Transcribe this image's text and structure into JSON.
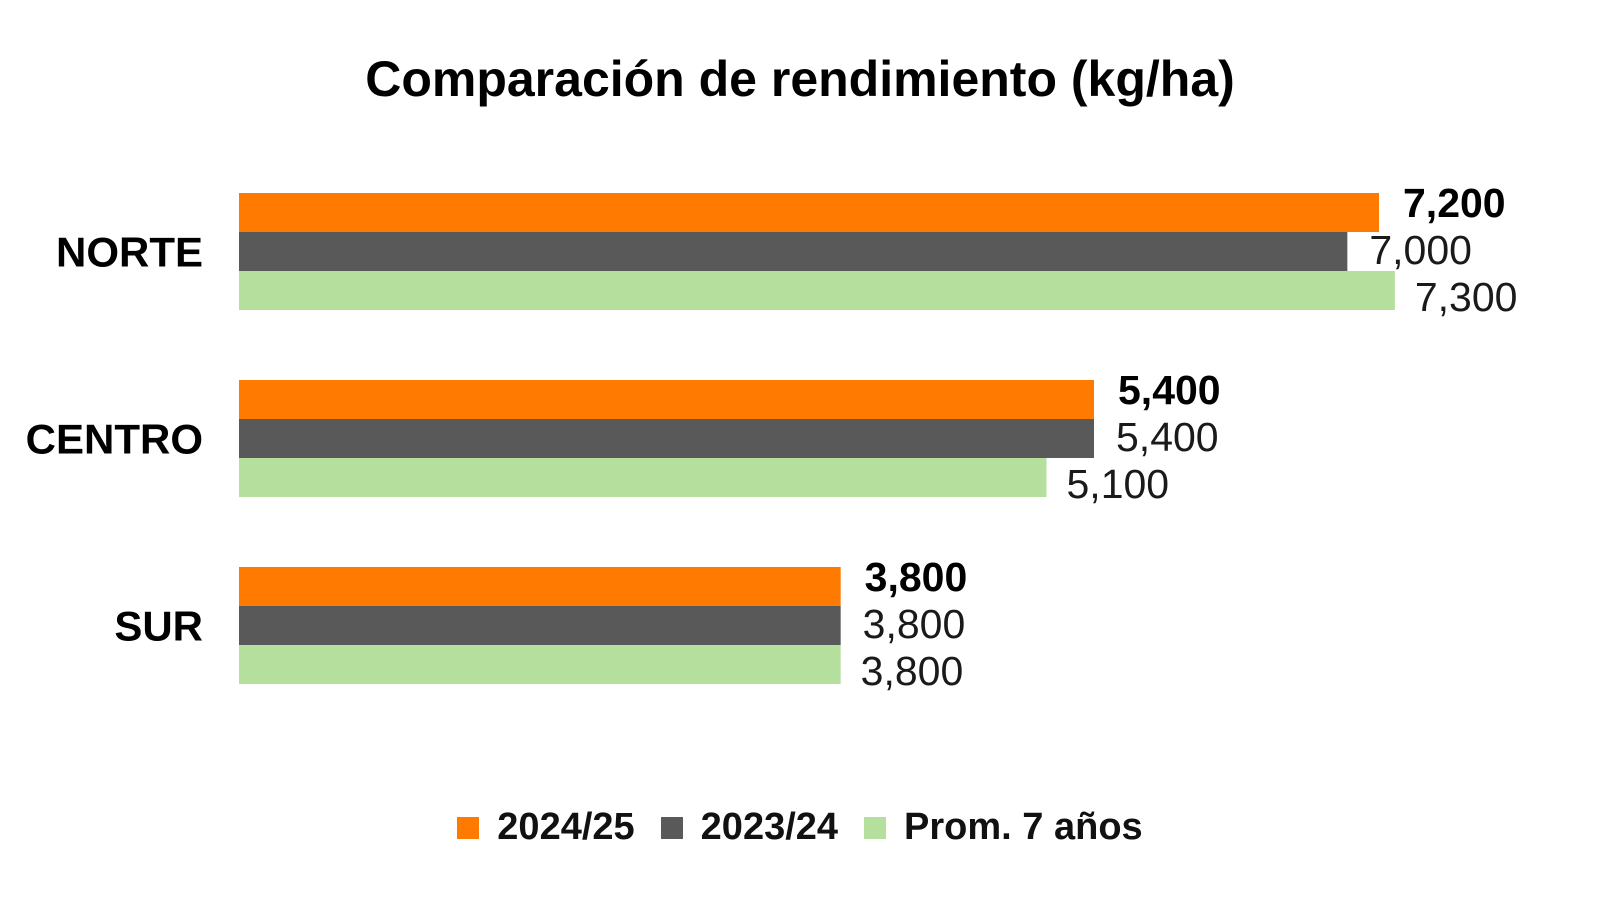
{
  "chart_data": {
    "type": "bar",
    "orientation": "horizontal",
    "title": "Comparación de rendimiento (kg/ha)",
    "categories": [
      "NORTE",
      "CENTRO",
      "SUR"
    ],
    "series": [
      {
        "name": "2024/25",
        "color": "#FF7A00",
        "values": [
          7200,
          5400,
          3800
        ],
        "labels": [
          "7,200",
          "5,400",
          "3,800"
        ]
      },
      {
        "name": "2023/24",
        "color": "#595959",
        "values": [
          7000,
          5400,
          3800
        ],
        "labels": [
          "7,000",
          "5,400",
          "3,800"
        ]
      },
      {
        "name": "Prom. 7 años",
        "color": "#B5DF9C",
        "values": [
          7300,
          5100,
          3800
        ],
        "labels": [
          "7,300",
          "5,100",
          "3,800"
        ]
      }
    ],
    "xlim": [
      0,
      7600
    ],
    "grid": false,
    "legend_position": "bottom"
  }
}
